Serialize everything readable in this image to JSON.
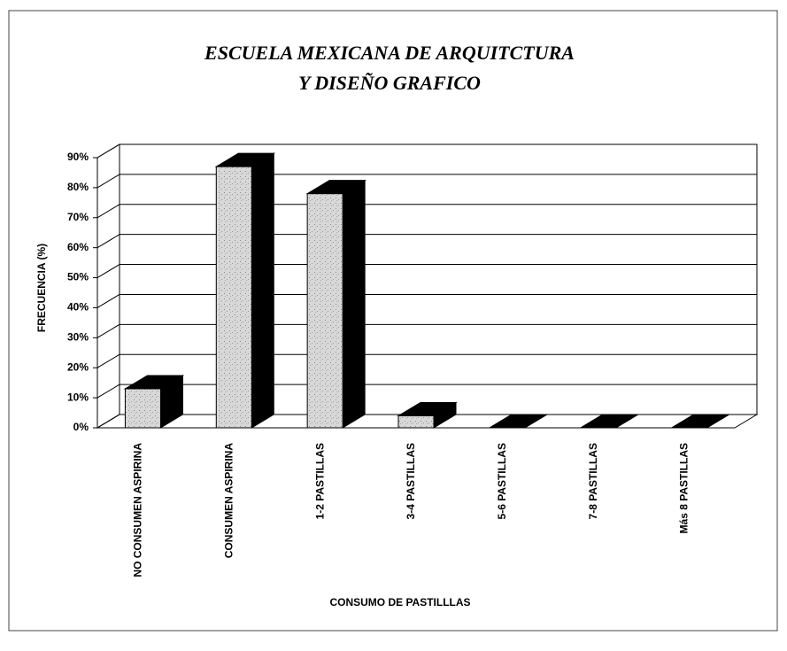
{
  "chart_data": {
    "type": "bar3d",
    "title": [
      "ESCUELA MEXICANA DE ARQUITCTURA",
      "Y DISEÑO GRAFICO"
    ],
    "x_label": "CONSUMO DE PASTILLLAS",
    "y_label": "FRECUENCIA (%)",
    "categories": [
      "NO CONSUMEN ASPIRINA",
      "CONSUMEN ASPIRINA",
      "1-2 PASTILLAS",
      "3-4 PASTILLAS",
      "5-6 PASTILLAS",
      "7-8 PASTILLAS",
      "Más 8 PASTILLAS"
    ],
    "values": [
      13,
      87,
      78,
      4,
      0,
      0,
      0
    ],
    "color": "#cfcfcf",
    "side_color": "#000000",
    "ylim": [
      0,
      90
    ],
    "yticks": [
      {
        "value": 0,
        "label": "0%"
      },
      {
        "value": 10,
        "label": "10%"
      },
      {
        "value": 20,
        "label": "20%"
      },
      {
        "value": 30,
        "label": "30%"
      },
      {
        "value": 40,
        "label": "40%"
      },
      {
        "value": 50,
        "label": "50%"
      },
      {
        "value": 60,
        "label": "60%"
      },
      {
        "value": 70,
        "label": "70%"
      },
      {
        "value": 80,
        "label": "80%"
      },
      {
        "value": 90,
        "label": "90%"
      }
    ],
    "grid": true
  }
}
